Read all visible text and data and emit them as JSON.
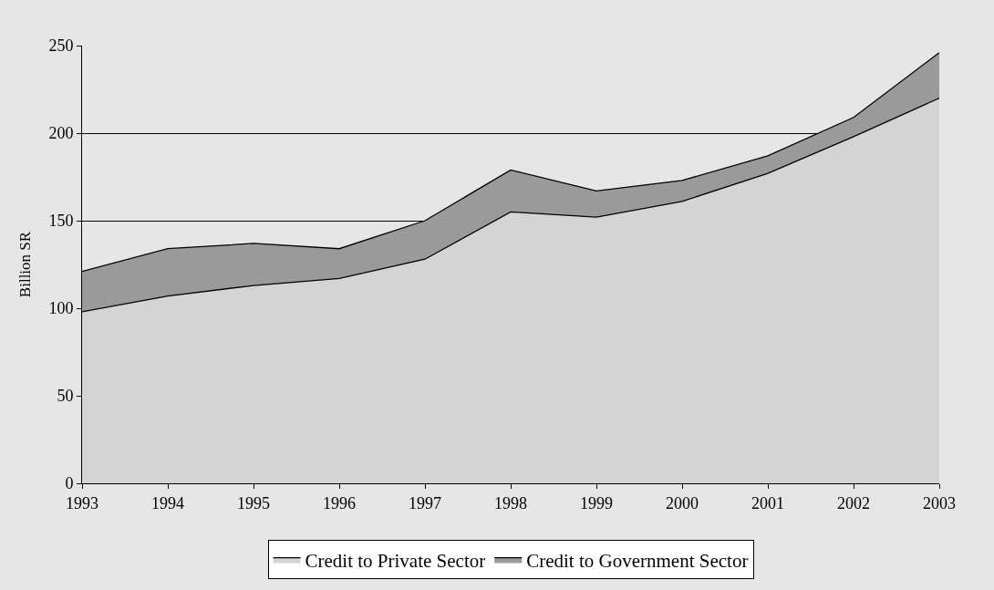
{
  "chart_data": {
    "type": "area",
    "stacked": true,
    "ylabel": "Billion SR",
    "x": [
      1993,
      1994,
      1995,
      1996,
      1997,
      1998,
      1999,
      2000,
      2001,
      2002,
      2003
    ],
    "series": [
      {
        "name": "Credit to Private Sector",
        "color": "#d4d4d4",
        "values": [
          98,
          107,
          113,
          117,
          128,
          155,
          152,
          161,
          177,
          198,
          220
        ]
      },
      {
        "name": "Credit to Government Sector",
        "color": "#9a9a9a",
        "values": [
          23,
          27,
          24,
          17,
          22,
          24,
          15,
          12,
          10,
          11,
          26
        ]
      }
    ],
    "xlim": [
      1993,
      2003
    ],
    "xticks": [
      1993,
      1994,
      1995,
      1996,
      1997,
      1998,
      1999,
      2000,
      2001,
      2002,
      2003
    ],
    "ylim": [
      0,
      250
    ],
    "yticks": [
      0,
      50,
      100,
      150,
      200,
      250
    ],
    "grid": "y",
    "legend": "bottom"
  }
}
